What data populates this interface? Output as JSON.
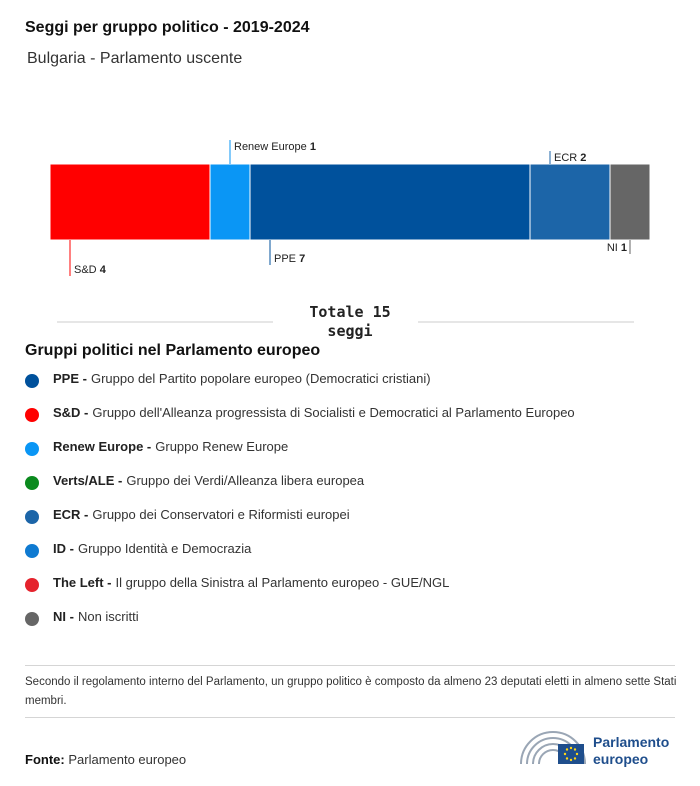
{
  "title": "Seggi per gruppo politico - 2019-2024",
  "subtitle": "Bulgaria - Parlamento uscente",
  "chart_data": {
    "type": "bar",
    "orientation": "horizontal-stacked",
    "total": 15,
    "series": [
      {
        "name": "S&D",
        "value": 4,
        "color": "#ff0000",
        "label_side": "below"
      },
      {
        "name": "Renew Europe",
        "value": 1,
        "color": "#0a96f5",
        "label_side": "above"
      },
      {
        "name": "PPE",
        "value": 7,
        "color": "#00519c",
        "label_side": "below"
      },
      {
        "name": "ECR",
        "value": 2,
        "color": "#1c65a8",
        "label_side": "above"
      },
      {
        "name": "NI",
        "value": 1,
        "color": "#666666",
        "label_side": "below"
      }
    ]
  },
  "total_label": "Totale 15 seggi",
  "legend_title": "Gruppi politici nel Parlamento europeo",
  "legend": [
    {
      "abbr": "PPE -",
      "desc": "Gruppo del Partito popolare europeo (Democratici cristiani)",
      "color": "#00519c"
    },
    {
      "abbr": "S&D -",
      "desc": "Gruppo dell'Alleanza progressista di Socialisti e Democratici al Parlamento Europeo",
      "color": "#ff0000"
    },
    {
      "abbr": "Renew Europe -",
      "desc": "Gruppo Renew Europe",
      "color": "#0a96f5"
    },
    {
      "abbr": "Verts/ALE -",
      "desc": "Gruppo dei Verdi/Alleanza libera europea",
      "color": "#0b8a1e"
    },
    {
      "abbr": "ECR -",
      "desc": "Gruppo dei Conservatori e Riformisti europei",
      "color": "#1c65a8"
    },
    {
      "abbr": "ID -",
      "desc": "Gruppo Identità e Democrazia",
      "color": "#0f7ad1"
    },
    {
      "abbr": "The Left -",
      "desc": "Il gruppo della Sinistra al Parlamento europeo - GUE/NGL",
      "color": "#e5232d"
    },
    {
      "abbr": "NI -",
      "desc": "Non iscritti",
      "color": "#666666"
    }
  ],
  "note": "Secondo il regolamento interno del Parlamento, un gruppo politico è composto da almeno 23 deputati eletti in almeno sette Stati membri.",
  "source_label": "Fonte:",
  "source_value": "Parlamento europeo",
  "logo_text_line1": "Parlamento",
  "logo_text_line2": "europeo"
}
